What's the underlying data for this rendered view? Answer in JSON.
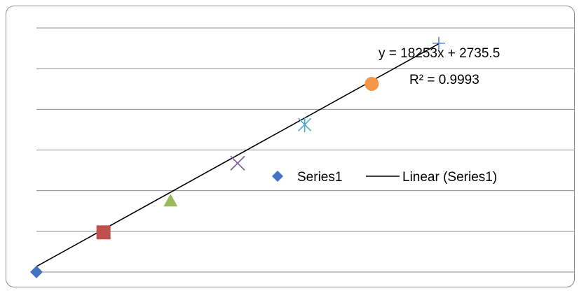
{
  "chart_data": {
    "type": "scatter",
    "title": "",
    "xlabel": "",
    "ylabel": "",
    "ylim": [
      0,
      120000
    ],
    "gridlines": "horizontal",
    "y_gridline_step": 20000,
    "series": [
      {
        "name": "Series1",
        "x": [
          0,
          1,
          2,
          3,
          4,
          5,
          6
        ],
        "y": [
          0,
          19500,
          35000,
          53500,
          72500,
          92500,
          112500
        ],
        "markers": [
          {
            "shape": "diamond",
            "color": "#4472c4"
          },
          {
            "shape": "square",
            "color": "#c0504d"
          },
          {
            "shape": "triangle",
            "color": "#9bbb59"
          },
          {
            "shape": "x",
            "color": "#8064a2"
          },
          {
            "shape": "star",
            "color": "#4bacc6"
          },
          {
            "shape": "circle",
            "color": "#f79646"
          },
          {
            "shape": "plus",
            "color": "#4472c4"
          }
        ]
      }
    ],
    "trendline": {
      "type": "linear",
      "color": "#000000",
      "slope": 18253,
      "intercept": 2735.5,
      "x_range": [
        0,
        6
      ],
      "equation": "y = 18253x + 2735.5",
      "r_squared": "R² = 0.9993"
    },
    "legend": {
      "position": "right-middle",
      "items": [
        {
          "label": "Series1",
          "marker": "diamond",
          "color": "#4472c4"
        },
        {
          "label": "Linear (Series1)",
          "marker": "line",
          "color": "#000000"
        }
      ]
    }
  }
}
